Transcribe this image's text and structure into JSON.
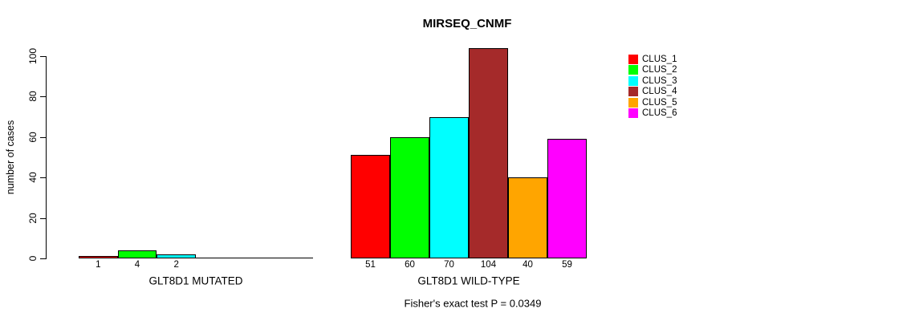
{
  "chart_data": {
    "type": "bar",
    "title": "MIRSEQ_CNMF",
    "ylabel": "number of cases",
    "ylim": [
      0,
      100
    ],
    "yticks": [
      "0",
      "20",
      "40",
      "60",
      "80",
      "100"
    ],
    "grid": false,
    "legend_position": "right",
    "clusters": [
      {
        "name": "CLUS_1",
        "color": "#FF0000"
      },
      {
        "name": "CLUS_2",
        "color": "#00FF00"
      },
      {
        "name": "CLUS_3",
        "color": "#00FFFF"
      },
      {
        "name": "CLUS_4",
        "color": "#A52A2A"
      },
      {
        "name": "CLUS_5",
        "color": "#FFA500"
      },
      {
        "name": "CLUS_6",
        "color": "#FF00FF"
      }
    ],
    "groups": [
      {
        "label": "GLT8D1 MUTATED",
        "values": [
          1,
          4,
          2,
          0,
          0,
          0
        ],
        "bar_labels": [
          "1",
          "4",
          "2",
          "",
          "",
          ""
        ]
      },
      {
        "label": "GLT8D1 WILD-TYPE",
        "values": [
          51,
          60,
          70,
          104,
          40,
          59
        ],
        "bar_labels": [
          "51",
          "60",
          "70",
          "104",
          "40",
          "59"
        ]
      }
    ],
    "annotation": "Fisher's exact test P = 0.0349"
  }
}
